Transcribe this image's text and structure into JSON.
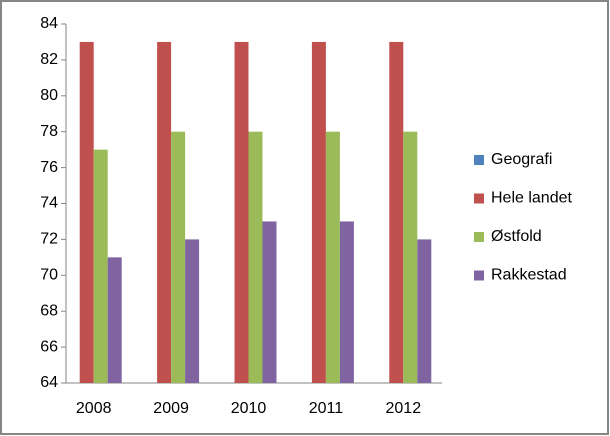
{
  "chart_data": {
    "type": "bar",
    "categories": [
      "2008",
      "2009",
      "2010",
      "2011",
      "2012"
    ],
    "series": [
      {
        "name": "Geografi",
        "color": "#4f81bd",
        "values": [
          null,
          null,
          null,
          null,
          null
        ]
      },
      {
        "name": "Hele landet",
        "color": "#c0504d",
        "values": [
          83,
          83,
          83,
          83,
          83
        ]
      },
      {
        "name": "Østfold",
        "color": "#9bbb59",
        "values": [
          77,
          78,
          78,
          78,
          78
        ]
      },
      {
        "name": "Rakkestad",
        "color": "#8064a2",
        "values": [
          71,
          72,
          73,
          73,
          72
        ]
      }
    ],
    "ylim": [
      64,
      84
    ],
    "yticks": [
      64,
      66,
      68,
      70,
      72,
      74,
      76,
      78,
      80,
      82,
      84
    ],
    "grid": false,
    "legend": "right"
  }
}
